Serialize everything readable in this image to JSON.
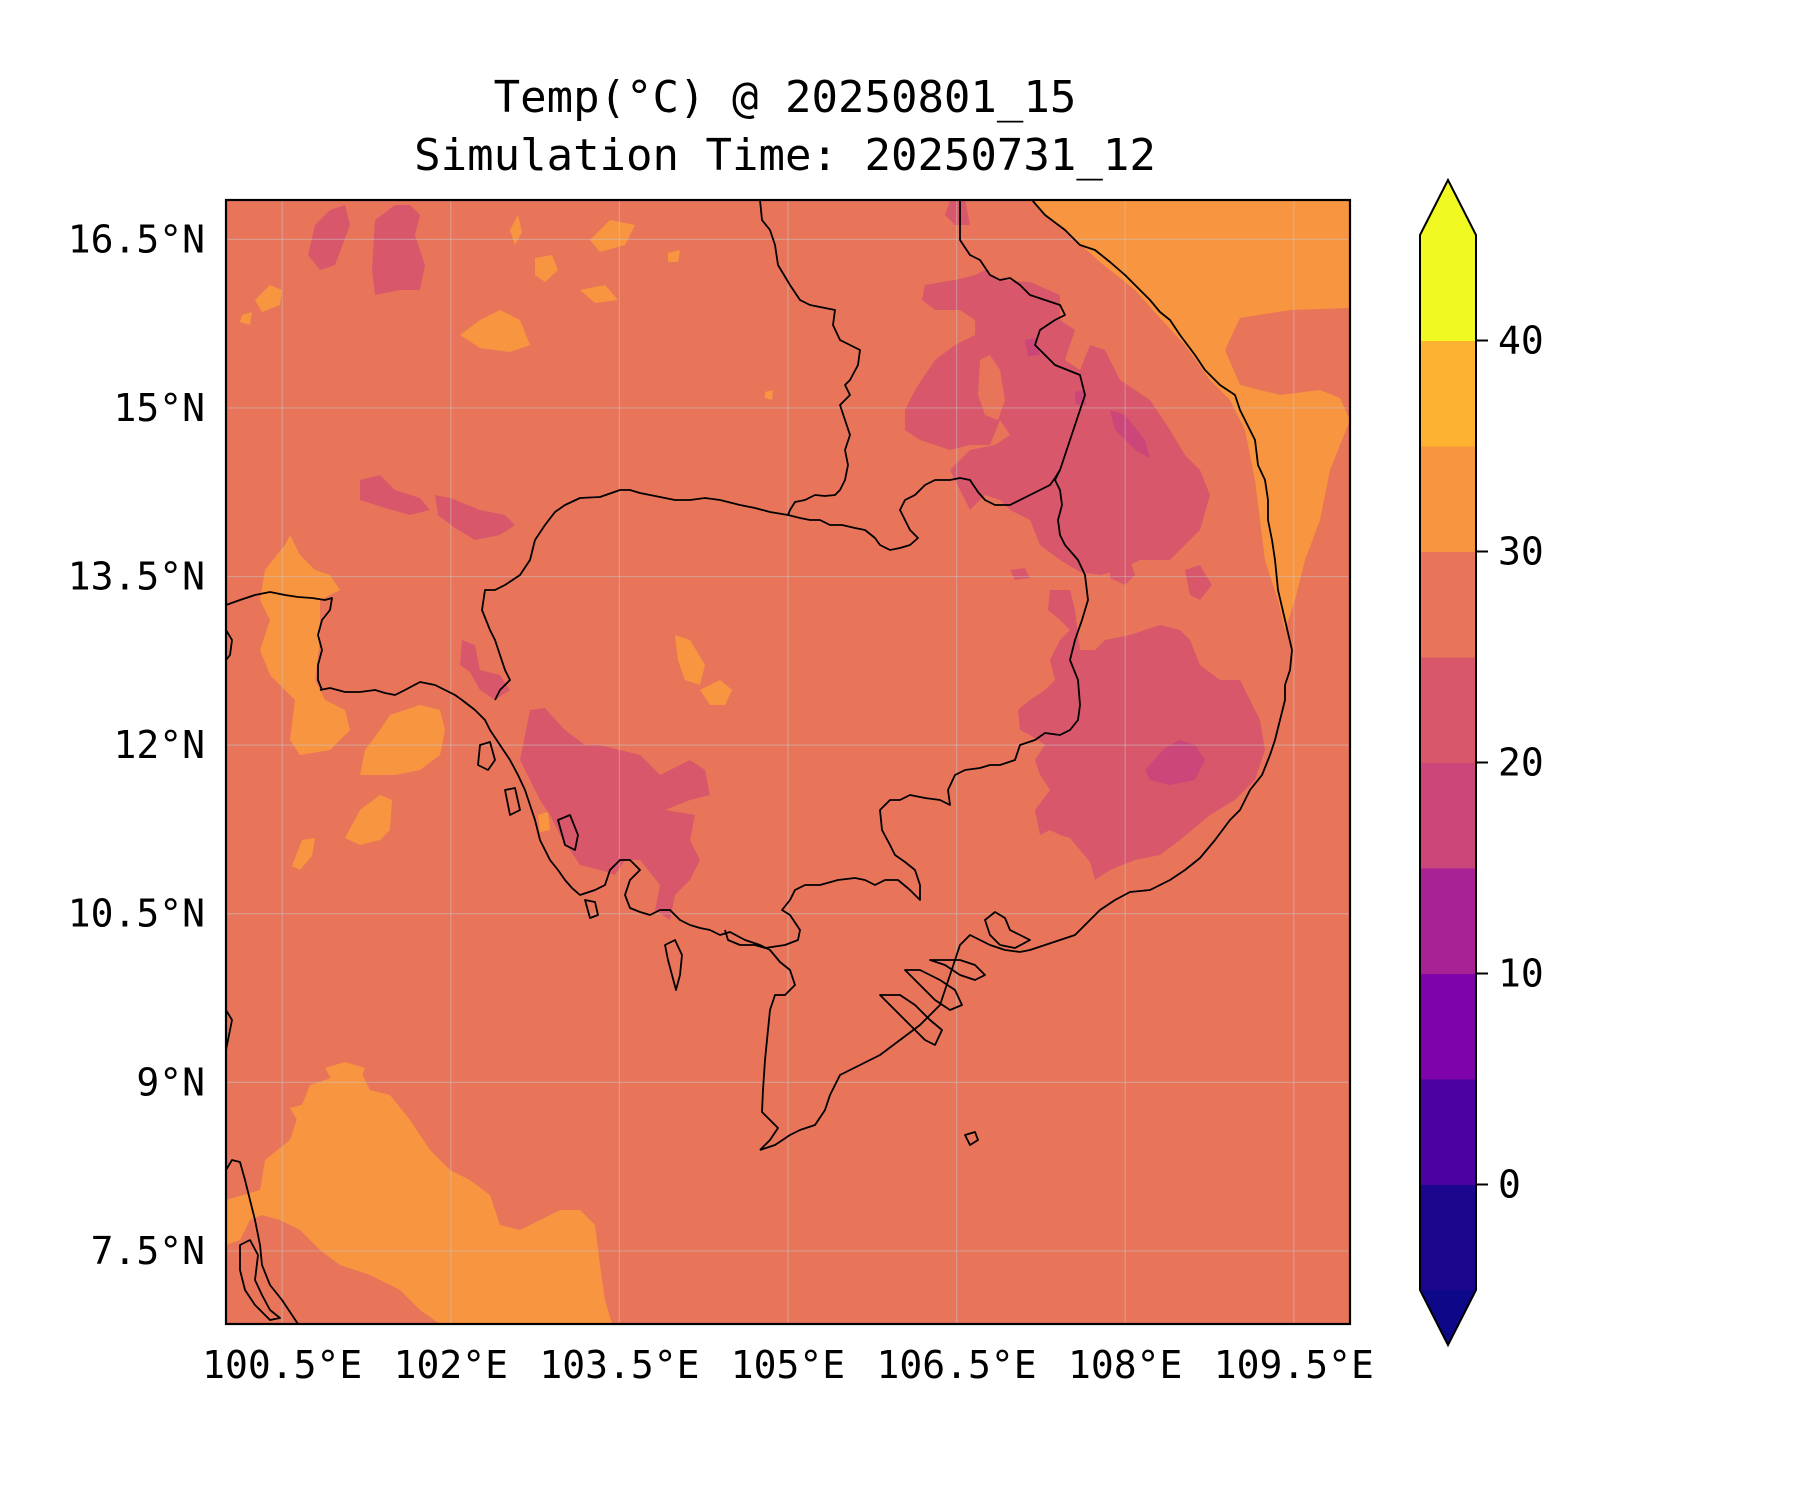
{
  "title": {
    "line1": "Temp(°C) @ 20250801_15",
    "line2": "Simulation Time: 20250731_12"
  },
  "map": {
    "lon_range": [
      100.0,
      110.0
    ],
    "lat_range": [
      6.85,
      16.85
    ],
    "x_ticks": [
      "100.5°E",
      "102°E",
      "103.5°E",
      "105°E",
      "106.5°E",
      "108°E",
      "109.5°E"
    ],
    "y_ticks": [
      "16.5°N",
      "15°N",
      "13.5°N",
      "12°N",
      "10.5°N",
      "9°N",
      "7.5°N"
    ],
    "gridlines": true,
    "background_level_color": "#e8755a"
  },
  "colorbar": {
    "levels": [
      -5,
      0,
      5,
      10,
      15,
      20,
      25,
      30,
      35,
      40,
      45
    ],
    "tick_labels": [
      "40",
      "30",
      "20",
      "10",
      "0"
    ],
    "tick_values": [
      40,
      30,
      20,
      10,
      0
    ],
    "colors": [
      "#1b068d",
      "#4c02a1",
      "#7e03a8",
      "#a82296",
      "#cb4679",
      "#d8576b",
      "#e8755a",
      "#f89540",
      "#fdb32f",
      "#f0f921"
    ],
    "under_color": "#0d0887",
    "over_color": "#f0f921",
    "extend": "both"
  }
}
